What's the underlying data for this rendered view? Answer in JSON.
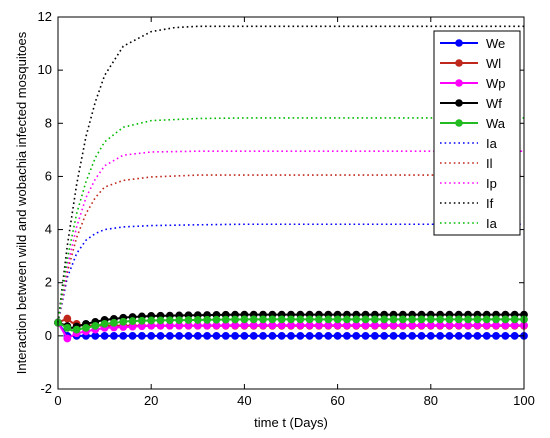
{
  "chart_data": {
    "type": "line",
    "xlabel": "time t (Days)",
    "ylabel": "Interaction between wild and wobachia infected mosquitoes",
    "xlim": [
      0,
      100
    ],
    "ylim": [
      -2,
      12
    ],
    "x_ticks": [
      0,
      20,
      40,
      60,
      80,
      100
    ],
    "y_ticks": [
      -2,
      0,
      2,
      4,
      6,
      8,
      10,
      12
    ],
    "legend_position": "top-right",
    "grid": false,
    "series": [
      {
        "name": "We",
        "color": "#0000ff",
        "style": "solid-marker",
        "x": [
          0,
          2,
          10,
          20,
          40,
          60,
          80,
          100
        ],
        "y": [
          0.5,
          0.0,
          0.0,
          0.0,
          0.0,
          0.0,
          0.0,
          0.0
        ]
      },
      {
        "name": "Wl",
        "color": "#c0271c",
        "style": "solid-marker",
        "x": [
          0,
          2,
          3,
          5,
          10,
          20,
          40,
          60,
          80,
          100
        ],
        "y": [
          0.5,
          0.65,
          0.5,
          0.4,
          0.38,
          0.38,
          0.38,
          0.38,
          0.38,
          0.38
        ]
      },
      {
        "name": "Wp",
        "color": "#ff00ff",
        "style": "solid-marker",
        "x": [
          0,
          1,
          2,
          4,
          10,
          20,
          40,
          60,
          80,
          100
        ],
        "y": [
          0.5,
          0.2,
          -0.1,
          0.1,
          0.3,
          0.38,
          0.4,
          0.4,
          0.4,
          0.4
        ]
      },
      {
        "name": "Wf",
        "color": "#000000",
        "style": "solid-marker",
        "x": [
          0,
          3,
          6,
          10,
          15,
          20,
          30,
          40,
          60,
          80,
          100
        ],
        "y": [
          0.5,
          0.3,
          0.45,
          0.6,
          0.7,
          0.75,
          0.78,
          0.8,
          0.8,
          0.8,
          0.8
        ]
      },
      {
        "name": "Wa",
        "color": "#22bb22",
        "style": "solid-marker",
        "x": [
          0,
          3,
          6,
          10,
          15,
          20,
          30,
          40,
          60,
          80,
          100
        ],
        "y": [
          0.5,
          0.2,
          0.3,
          0.45,
          0.55,
          0.58,
          0.6,
          0.62,
          0.62,
          0.62,
          0.62
        ]
      },
      {
        "name": "Ia",
        "color": "#0000ff",
        "style": "dotted",
        "x": [
          0,
          2,
          4,
          6,
          8,
          10,
          14,
          20,
          30,
          40,
          60,
          80,
          100
        ],
        "y": [
          0.5,
          2.2,
          3.1,
          3.6,
          3.85,
          4.0,
          4.1,
          4.15,
          4.18,
          4.2,
          4.2,
          4.2,
          4.2
        ]
      },
      {
        "name": "Il",
        "color": "#c0271c",
        "style": "dotted",
        "x": [
          0,
          2,
          4,
          6,
          8,
          10,
          14,
          20,
          30,
          40,
          60,
          80,
          100
        ],
        "y": [
          0.5,
          2.4,
          3.7,
          4.6,
          5.2,
          5.6,
          5.85,
          5.98,
          6.05,
          6.05,
          6.05,
          6.05,
          6.05
        ]
      },
      {
        "name": "Ip",
        "color": "#ff00ff",
        "style": "dotted",
        "x": [
          0,
          2,
          4,
          6,
          8,
          10,
          14,
          20,
          30,
          40,
          60,
          80,
          100
        ],
        "y": [
          0.5,
          2.6,
          4.1,
          5.2,
          5.9,
          6.4,
          6.8,
          6.92,
          6.95,
          6.95,
          6.95,
          6.95,
          6.95
        ]
      },
      {
        "name": "If",
        "color": "#000000",
        "style": "dotted",
        "x": [
          0,
          2,
          4,
          6,
          8,
          10,
          14,
          20,
          25,
          30,
          40,
          60,
          80,
          100
        ],
        "y": [
          0.5,
          3.4,
          5.7,
          7.5,
          8.8,
          9.8,
          10.9,
          11.45,
          11.6,
          11.65,
          11.65,
          11.65,
          11.65,
          11.65
        ]
      },
      {
        "name": "Ia",
        "color": "#00bb00",
        "style": "dotted",
        "x": [
          0,
          2,
          4,
          6,
          8,
          10,
          14,
          20,
          30,
          40,
          60,
          80,
          100
        ],
        "y": [
          0.5,
          2.9,
          4.6,
          5.8,
          6.7,
          7.3,
          7.85,
          8.1,
          8.18,
          8.2,
          8.2,
          8.2,
          8.2
        ]
      }
    ]
  }
}
